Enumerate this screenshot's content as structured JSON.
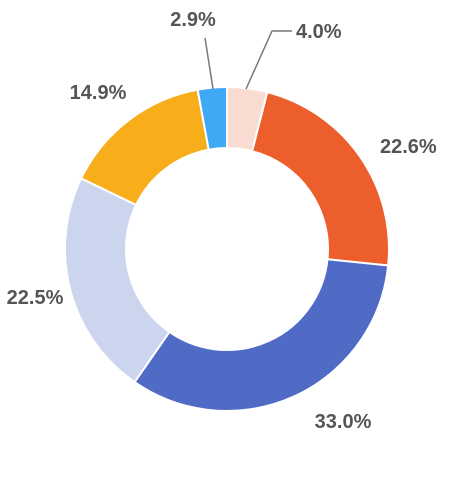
{
  "chart_data": {
    "type": "pie",
    "donut": true,
    "title": "",
    "legend": "none",
    "slices": [
      {
        "label": "4.0%",
        "value": 4.0,
        "color": "#F9DDD2"
      },
      {
        "label": "22.6%",
        "value": 22.6,
        "color": "#EC5F2C"
      },
      {
        "label": "33.0%",
        "value": 33.0,
        "color": "#4F6BC6"
      },
      {
        "label": "22.5%",
        "value": 22.5,
        "color": "#CBD5EE"
      },
      {
        "label": "14.9%",
        "value": 14.9,
        "color": "#F8AE1B"
      },
      {
        "label": "2.9%",
        "value": 2.9,
        "color": "#3FA9F5"
      }
    ]
  }
}
